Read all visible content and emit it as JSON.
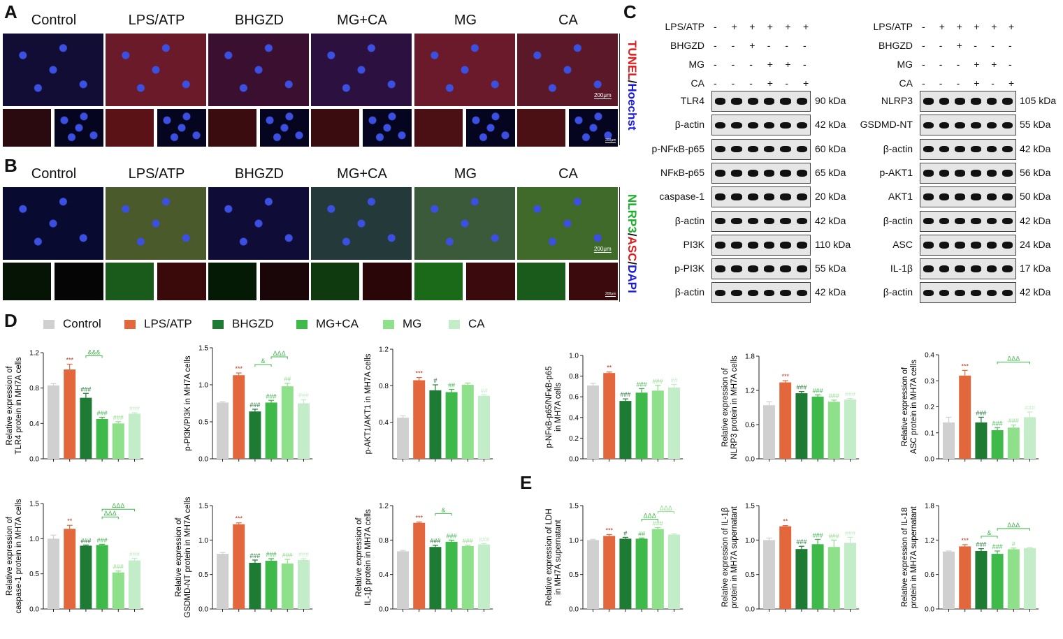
{
  "panels": {
    "a": "A",
    "b": "B",
    "c": "C",
    "d": "D",
    "e": "E"
  },
  "groups": [
    "Control",
    "LPS/ATP",
    "BHGZD",
    "MG+CA",
    "MG",
    "CA"
  ],
  "colors": [
    "#d0d0d0",
    "#e2673c",
    "#1e7b34",
    "#3fba4a",
    "#8ee08a",
    "#c3ecc9"
  ],
  "panel_a": {
    "stain_label": {
      "p1": "TUNEL",
      "sep": "/",
      "p2": "Hoechst"
    },
    "scale_bar": "200μm",
    "scale_bar_small": "200μm"
  },
  "panel_b": {
    "stain_label": {
      "p1": "NLRP3",
      "sep": "/",
      "p2": "ASC",
      "sep2": "/",
      "p3": "DAPI"
    },
    "scale_bar": "200μm",
    "scale_bar_small": "200μm"
  },
  "panel_c": {
    "treatment_rows": [
      {
        "label": "LPS/ATP",
        "signs": [
          "-",
          "+",
          "+",
          "+",
          "+",
          "+"
        ]
      },
      {
        "label": "BHGZD",
        "signs": [
          "-",
          "-",
          "+",
          "-",
          "-",
          "-"
        ]
      },
      {
        "label": "MG",
        "signs": [
          "-",
          "-",
          "-",
          "+",
          "+",
          "-"
        ]
      },
      {
        "label": "CA",
        "signs": [
          "-",
          "-",
          "-",
          "+",
          "-",
          "+"
        ]
      }
    ],
    "left_blots": [
      {
        "label": "TLR4",
        "kda": "90 kDa"
      },
      {
        "label": "β-actin",
        "kda": "42 kDa"
      },
      {
        "label": "p-NFκB-p65",
        "kda": "60 kDa"
      },
      {
        "label": "NFκB-p65",
        "kda": "65 kDa"
      },
      {
        "label": "caspase-1",
        "kda": "20 kDa"
      },
      {
        "label": "β-actin",
        "kda": "42 kDa"
      },
      {
        "label": "PI3K",
        "kda": "110 kDa"
      },
      {
        "label": "p-PI3K",
        "kda": "55 kDa"
      },
      {
        "label": "β-actin",
        "kda": "42 kDa"
      }
    ],
    "right_blots": [
      {
        "label": "NLRP3",
        "kda": "105 kDa"
      },
      {
        "label": "GSDMD-NT",
        "kda": "55 kDa"
      },
      {
        "label": "β-actin",
        "kda": "42 kDa"
      },
      {
        "label": "p-AKT1",
        "kda": "56 kDa"
      },
      {
        "label": "AKT1",
        "kda": "50 kDa"
      },
      {
        "label": "β-actin",
        "kda": "42 kDa"
      },
      {
        "label": "ASC",
        "kda": "24 kDa"
      },
      {
        "label": "IL-1β",
        "kda": "17 kDa"
      },
      {
        "label": "β-actin",
        "kda": "42 kDa"
      }
    ]
  },
  "chart_data": [
    {
      "type": "bar",
      "ylabel": "Relative expression of\nTLR4 protein in MH7A cells",
      "ylim": [
        0,
        1.2
      ],
      "ticks": [
        "0.0",
        "0.4",
        "0.8",
        "1.2"
      ],
      "categories": [
        "Control",
        "LPS/ATP",
        "BHGZD",
        "MG+CA",
        "MG",
        "CA"
      ],
      "values": [
        0.83,
        1.01,
        0.69,
        0.45,
        0.4,
        0.51
      ],
      "errors": [
        0.02,
        0.06,
        0.05,
        0.02,
        0.02,
        0.01
      ],
      "marks": [
        "",
        "***",
        "###",
        "###",
        "###",
        "###"
      ],
      "brackets": [
        {
          "from": 2,
          "to": 3,
          "label": "&&&"
        }
      ]
    },
    {
      "type": "bar",
      "ylabel": "p-PI3K/PI3K in MH7A cells",
      "ylim": [
        0,
        1.5
      ],
      "ticks": [
        "0.0",
        "0.5",
        "1.0",
        "1.5"
      ],
      "categories": [
        "Control",
        "LPS/ATP",
        "BHGZD",
        "MG+CA",
        "MG",
        "CA"
      ],
      "values": [
        0.76,
        1.13,
        0.64,
        0.76,
        0.98,
        0.75
      ],
      "errors": [
        0.01,
        0.03,
        0.03,
        0.03,
        0.04,
        0.05
      ],
      "marks": [
        "",
        "***",
        "###",
        "###",
        "##",
        "###"
      ],
      "brackets": [
        {
          "from": 2,
          "to": 3,
          "label": "&"
        },
        {
          "from": 3,
          "to": 4,
          "label": "ΔΔΔ"
        }
      ]
    },
    {
      "type": "bar",
      "ylabel": "p-AKT1/AKT1 in MH7A cells",
      "ylim": [
        0,
        1.2
      ],
      "ticks": [
        "0.4",
        "0.8",
        "1.2"
      ],
      "categories": [
        "Control",
        "LPS/ATP",
        "BHGZD",
        "MG+CA",
        "MG",
        "CA"
      ],
      "values": [
        0.45,
        0.86,
        0.75,
        0.73,
        0.81,
        0.69
      ],
      "errors": [
        0.02,
        0.03,
        0.06,
        0.03,
        0.02,
        0.01
      ],
      "marks": [
        "",
        "***",
        "#",
        "##",
        "",
        "##"
      ],
      "brackets": []
    },
    {
      "type": "bar",
      "ylabel": "p-NFκB-p65/NFκB-p65\nin MH7A cells",
      "ylim": [
        0,
        1.0
      ],
      "ticks": [
        "0.0",
        "0.2",
        "0.4",
        "0.6",
        "0.8",
        "1.0"
      ],
      "categories": [
        "Control",
        "LPS/ATP",
        "BHGZD",
        "MG+CA",
        "MG",
        "CA"
      ],
      "values": [
        0.71,
        0.83,
        0.56,
        0.64,
        0.66,
        0.69
      ],
      "errors": [
        0.02,
        0.01,
        0.02,
        0.04,
        0.05,
        0.03
      ],
      "marks": [
        "",
        "**",
        "###",
        "###",
        "###",
        "##"
      ],
      "brackets": []
    },
    {
      "type": "bar",
      "ylabel": "Relative expression of\nNLRP3 protein in MH7A cells",
      "ylim": [
        0,
        1.8
      ],
      "ticks": [
        "0.0",
        "0.6",
        "1.2",
        "1.8"
      ],
      "categories": [
        "Control",
        "LPS/ATP",
        "BHGZD",
        "MG+CA",
        "MG",
        "CA"
      ],
      "values": [
        0.94,
        1.34,
        1.15,
        1.09,
        1.0,
        1.04
      ],
      "errors": [
        0.06,
        0.03,
        0.03,
        0.03,
        0.03,
        0.02
      ],
      "marks": [
        "",
        "***",
        "###",
        "###",
        "###",
        "###"
      ],
      "brackets": []
    },
    {
      "type": "bar",
      "ylabel": "Relative expression of\nASC protein in MH7A cells",
      "ylim": [
        0,
        0.4
      ],
      "ticks": [
        "0.0",
        "0.1",
        "0.2",
        "0.3",
        "0.4"
      ],
      "categories": [
        "Control",
        "LPS/ATP",
        "BHGZD",
        "MG+CA",
        "MG",
        "CA"
      ],
      "values": [
        0.14,
        0.32,
        0.14,
        0.11,
        0.12,
        0.16
      ],
      "errors": [
        0.02,
        0.02,
        0.02,
        0.01,
        0.01,
        0.02
      ],
      "marks": [
        "",
        "***",
        "###",
        "###",
        "###",
        "###"
      ],
      "brackets": [
        {
          "from": 3,
          "to": 5,
          "label": "ΔΔΔ"
        }
      ]
    },
    {
      "type": "bar",
      "ylabel": "Relative expression of\ncaspase-1 protein in MH7A cells",
      "ylim": [
        0,
        1.5
      ],
      "ticks": [
        "0.0",
        "0.5",
        "1.0",
        "1.5"
      ],
      "categories": [
        "Control",
        "LPS/ATP",
        "BHGZD",
        "MG+CA",
        "MG",
        "CA"
      ],
      "values": [
        1.0,
        1.14,
        0.9,
        0.91,
        0.52,
        0.69
      ],
      "errors": [
        0.05,
        0.05,
        0.01,
        0.01,
        0.02,
        0.03
      ],
      "marks": [
        "",
        "**",
        "###",
        "###",
        "###",
        "###"
      ],
      "brackets": [
        {
          "from": 3,
          "to": 4,
          "label": "ΔΔΔ"
        },
        {
          "from": 3,
          "to": 5,
          "label": "ΔΔΔ"
        }
      ]
    },
    {
      "type": "bar",
      "ylabel": "Relative expression of\nGSDMD-NT protein in MH7A cells",
      "ylim": [
        0,
        1.5
      ],
      "ticks": [
        "0.0",
        "0.5",
        "1.0",
        "1.5"
      ],
      "categories": [
        "Control",
        "LPS/ATP",
        "BHGZD",
        "MG+CA",
        "MG",
        "CA"
      ],
      "values": [
        0.8,
        1.23,
        0.67,
        0.7,
        0.66,
        0.71
      ],
      "errors": [
        0.02,
        0.02,
        0.04,
        0.03,
        0.06,
        0.02
      ],
      "marks": [
        "",
        "***",
        "###",
        "###",
        "###",
        "###"
      ],
      "brackets": []
    },
    {
      "type": "bar",
      "ylabel": "Relative expression of\nIL-1β protein in MH7A cells",
      "ylim": [
        0,
        1.2
      ],
      "ticks": [
        "0.0",
        "0.4",
        "0.8",
        "1.2"
      ],
      "categories": [
        "Control",
        "LPS/ATP",
        "BHGZD",
        "MG+CA",
        "MG",
        "CA"
      ],
      "values": [
        0.67,
        1.0,
        0.72,
        0.78,
        0.73,
        0.75
      ],
      "errors": [
        0.01,
        0.01,
        0.02,
        0.02,
        0.01,
        0.01
      ],
      "marks": [
        "",
        "***",
        "###",
        "###",
        "###",
        "###"
      ],
      "brackets": [
        {
          "from": 2,
          "to": 3,
          "label": "&"
        }
      ]
    },
    {
      "type": "bar",
      "ylabel": "Relative expression of LDH\nin MH7A supernatant",
      "ylim": [
        0,
        1.5
      ],
      "ticks": [
        "0.0",
        "0.5",
        "1.0",
        "1.5"
      ],
      "categories": [
        "Control",
        "LPS/ATP",
        "BHGZD",
        "MG+CA",
        "MG",
        "CA"
      ],
      "values": [
        1.0,
        1.06,
        1.02,
        1.02,
        1.16,
        1.08
      ],
      "errors": [
        0.01,
        0.02,
        0.02,
        0.01,
        0.02,
        0.01
      ],
      "marks": [
        "",
        "***",
        "#",
        "##",
        "###",
        ""
      ],
      "brackets": [
        {
          "from": 3,
          "to": 4,
          "label": "ΔΔΔ"
        },
        {
          "from": 4,
          "to": 5,
          "label": "ΔΔΔ"
        }
      ]
    },
    {
      "type": "bar",
      "ylabel": "Relative expression of IL-1β\nprotein in MH7A supernatant",
      "ylim": [
        0,
        1.5
      ],
      "ticks": [
        "0.0",
        "0.5",
        "1.0",
        "1.5"
      ],
      "categories": [
        "Control",
        "LPS/ATP",
        "BHGZD",
        "MG+CA",
        "MG",
        "CA"
      ],
      "values": [
        1.0,
        1.2,
        0.87,
        0.94,
        0.9,
        0.96
      ],
      "errors": [
        0.03,
        0.01,
        0.04,
        0.07,
        0.1,
        0.08
      ],
      "marks": [
        "",
        "**",
        "###",
        "###",
        "###",
        "###"
      ],
      "brackets": []
    },
    {
      "type": "bar",
      "ylabel": "Relative expression of IL-18\nprotein in MH7A supernatant",
      "ylim": [
        0,
        1.8
      ],
      "ticks": [
        "0.0",
        "0.6",
        "1.2",
        "1.8"
      ],
      "categories": [
        "Control",
        "LPS/ATP",
        "BHGZD",
        "MG+CA",
        "MG",
        "CA"
      ],
      "values": [
        1.0,
        1.09,
        1.01,
        0.96,
        1.04,
        1.06
      ],
      "errors": [
        0.01,
        0.03,
        0.04,
        0.05,
        0.02,
        0.01
      ],
      "marks": [
        "",
        "***",
        "###",
        "###",
        "#",
        ""
      ],
      "brackets": [
        {
          "from": 2,
          "to": 3,
          "label": "&"
        },
        {
          "from": 3,
          "to": 5,
          "label": "ΔΔΔ"
        }
      ]
    }
  ]
}
